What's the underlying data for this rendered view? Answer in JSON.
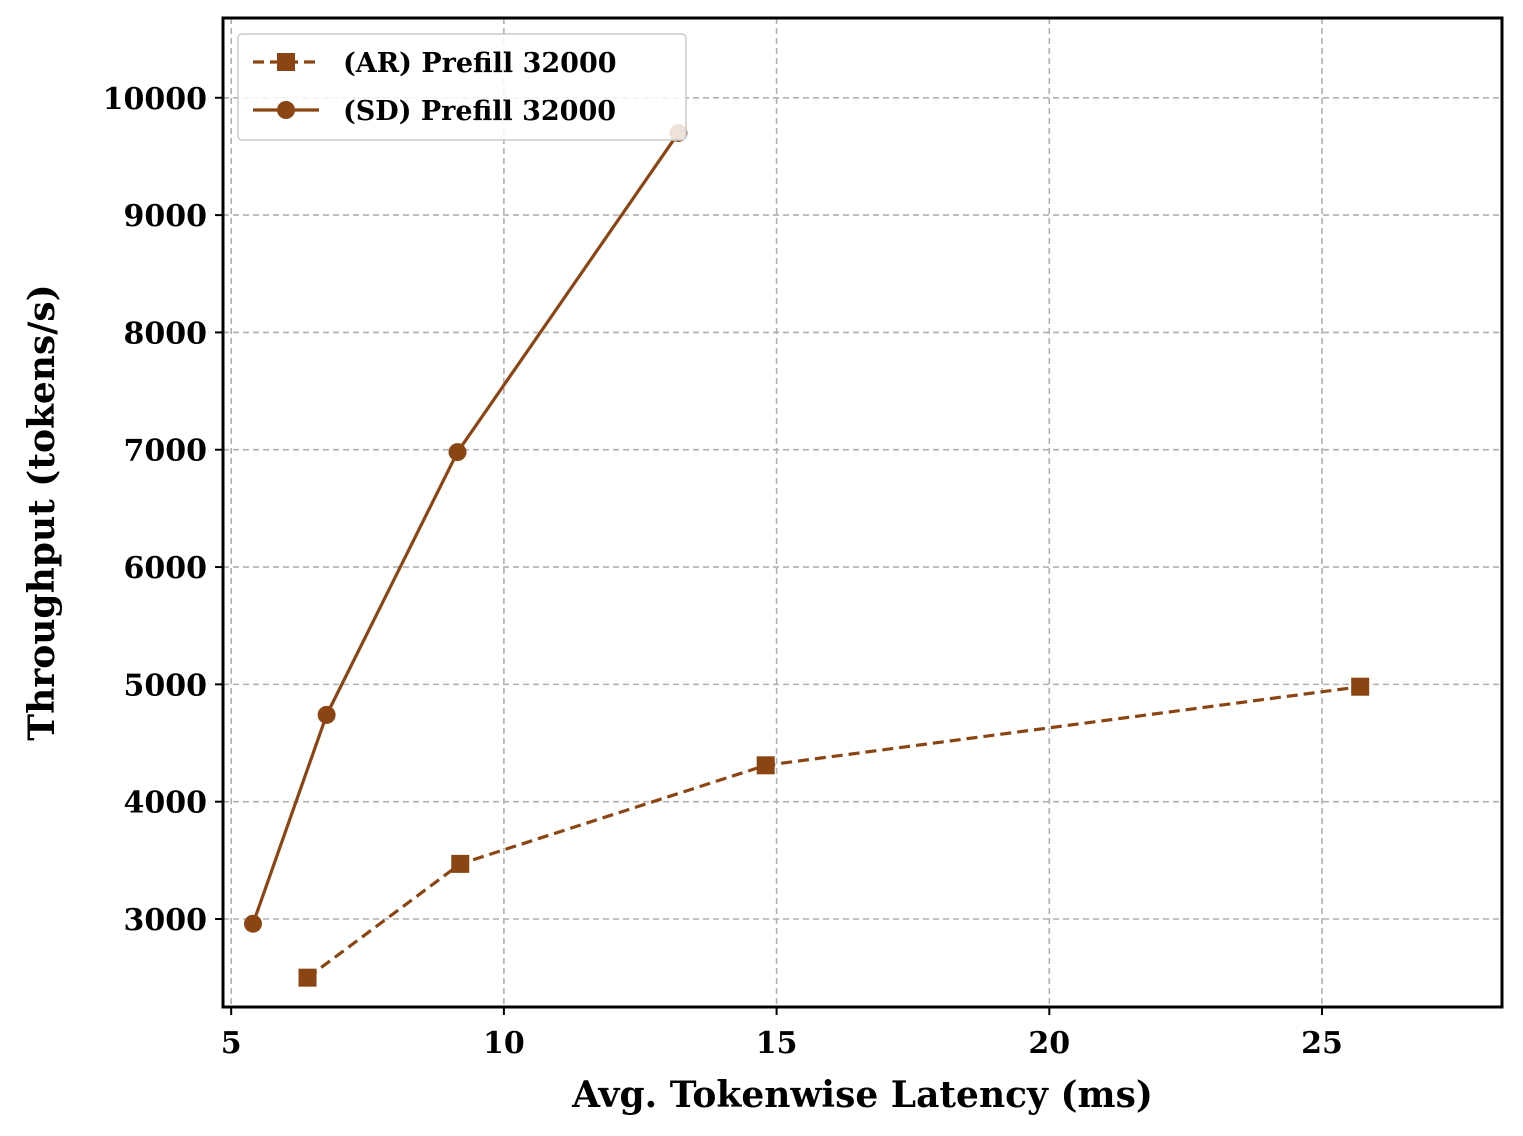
{
  "chart_data": {
    "type": "line",
    "title": "",
    "xlabel": "Avg. Tokenwise Latency (ms)",
    "ylabel": "Throughput (tokens/s)",
    "xlim": [
      4.85,
      28.3
    ],
    "ylim": [
      2250,
      10680
    ],
    "xticks": [
      5,
      10,
      15,
      20,
      25
    ],
    "yticks": [
      3000,
      4000,
      5000,
      6000,
      7000,
      8000,
      9000,
      10000
    ],
    "grid": true,
    "legend_position": "top-left",
    "color": "#8B4513",
    "series": [
      {
        "name": "(AR) Prefill 32000",
        "linestyle": "dashed",
        "marker": "square",
        "x": [
          6.4,
          9.2,
          14.8,
          25.7
        ],
        "y": [
          2500,
          3470,
          4310,
          4980
        ]
      },
      {
        "name": "(SD) Prefill 32000",
        "linestyle": "solid",
        "marker": "circle",
        "x": [
          5.4,
          6.75,
          9.15,
          13.2
        ],
        "y": [
          2960,
          4740,
          6980,
          9700
        ]
      }
    ]
  }
}
